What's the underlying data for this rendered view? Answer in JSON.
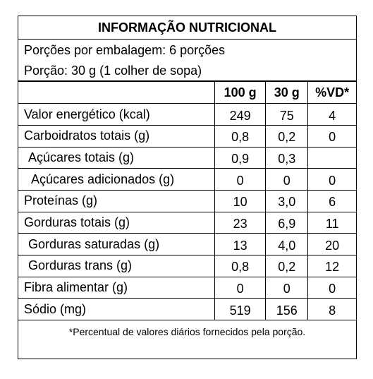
{
  "title": "INFORMAÇÃO NUTRICIONAL",
  "portions_per_package": "Porções por embalagem: 6 porções",
  "portion_size": "Porção: 30 g (1 colher de sopa)",
  "headers": [
    "",
    "100 g",
    "30 g",
    "%VD*"
  ],
  "rows": [
    {
      "label": "Valor energético (kcal)",
      "per100": "249",
      "per30": "75",
      "vd": "4",
      "indent": 0
    },
    {
      "label": "Carboidratos totais (g)",
      "per100": "0,8",
      "per30": "0,2",
      "vd": "0",
      "indent": 0
    },
    {
      "label": "Açúcares totais (g)",
      "per100": "0,9",
      "per30": "0,3",
      "vd": "",
      "indent": 1
    },
    {
      "label": "Açúcares adicionados (g)",
      "per100": "0",
      "per30": "0",
      "vd": "0",
      "indent": 2
    },
    {
      "label": "Proteínas (g)",
      "per100": "10",
      "per30": "3,0",
      "vd": "6",
      "indent": 0
    },
    {
      "label": "Gorduras totais (g)",
      "per100": "23",
      "per30": "6,9",
      "vd": "11",
      "indent": 0
    },
    {
      "label": "Gorduras saturadas (g)",
      "per100": "13",
      "per30": "4,0",
      "vd": "20",
      "indent": 1
    },
    {
      "label": "Gorduras trans (g)",
      "per100": "0,8",
      "per30": "0,2",
      "vd": "12",
      "indent": 1
    },
    {
      "label": "Fibra alimentar (g)",
      "per100": "0",
      "per30": "0",
      "vd": "0",
      "indent": 0
    },
    {
      "label": "Sódio (mg)",
      "per100": "519",
      "per30": "156",
      "vd": "8",
      "indent": 0
    }
  ],
  "footnote": "*Percentual de valores diários fornecidos pela porção."
}
